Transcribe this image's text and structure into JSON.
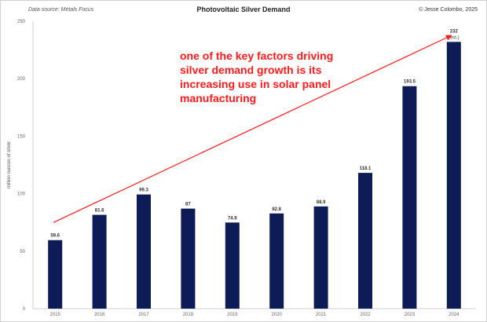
{
  "header": {
    "source": "Data source: Metals Focus",
    "title": "Photovoltaic Silver Demand",
    "credit": "© Jesse Colombo, 2025"
  },
  "annotation": "one of the key factors driving silver demand growth is its increasing use in solar panel manufacturing",
  "colors": {
    "bar": "#0d1b57",
    "arrow": "#ff1a1a",
    "axis": "#cfcfcf",
    "text": "#333333"
  },
  "chart_data": {
    "type": "bar",
    "title": "Photovoltaic Silver Demand",
    "xlabel": "",
    "ylabel": "million ounces of silver",
    "ylim": [
      0,
      250
    ],
    "yticks": [
      0,
      50,
      100,
      150,
      200,
      250
    ],
    "grid": false,
    "categories": [
      "2015",
      "2016",
      "2017",
      "2018",
      "2019",
      "2020",
      "2021",
      "2022",
      "2023",
      "2024"
    ],
    "values": [
      59.6,
      81.6,
      99.3,
      87,
      74.9,
      82.8,
      88.9,
      118.1,
      193.5,
      232
    ],
    "data_labels": [
      "59.6",
      "81.6",
      "99.3",
      "87",
      "74.9",
      "82.8",
      "88.9",
      "118.1",
      "193.5",
      "232"
    ],
    "label_note": {
      "index": 9,
      "text": "(est.)"
    },
    "trend_arrow": {
      "from": [
        0,
        75
      ],
      "to": [
        9,
        238
      ]
    }
  }
}
